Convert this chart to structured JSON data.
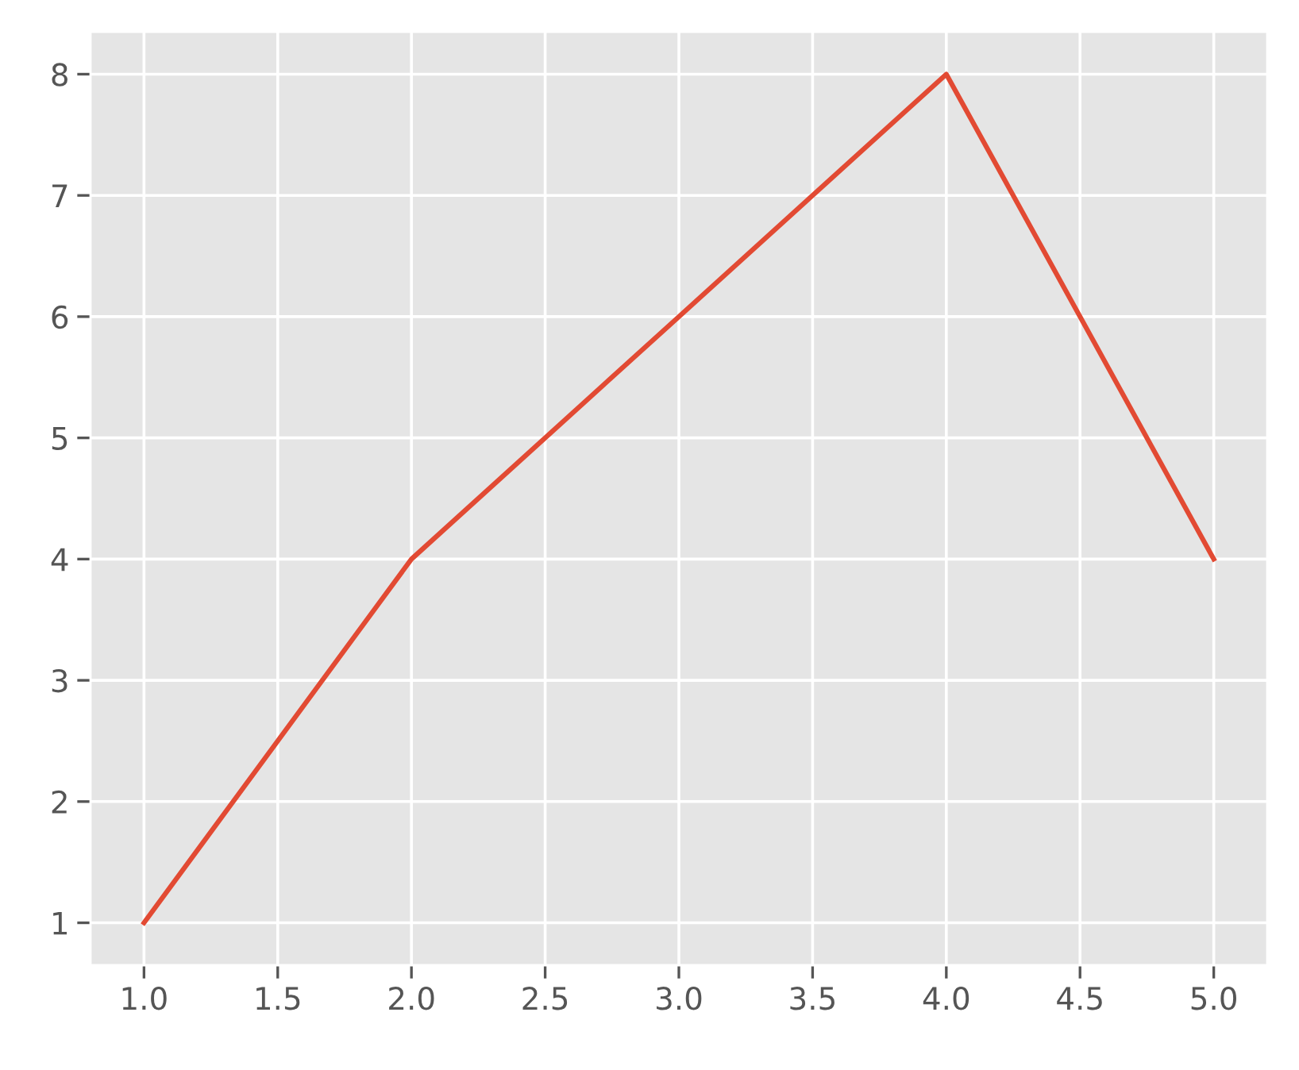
{
  "chart_data": {
    "type": "line",
    "x": [
      1,
      2,
      3,
      4,
      5
    ],
    "series": [
      {
        "color": "#e24a33",
        "values": [
          1,
          4,
          6,
          8,
          4
        ]
      }
    ],
    "xlim": [
      0.8,
      5.2
    ],
    "ylim": [
      0.65,
      8.35
    ],
    "xticks": [
      {
        "value": 1,
        "label": "1.0"
      },
      {
        "value": 1.5,
        "label": "1.5"
      },
      {
        "value": 2,
        "label": "2.0"
      },
      {
        "value": 2.5,
        "label": "2.5"
      },
      {
        "value": 3,
        "label": "3.0"
      },
      {
        "value": 3.5,
        "label": "3.5"
      },
      {
        "value": 4,
        "label": "4.0"
      },
      {
        "value": 4.5,
        "label": "4.5"
      },
      {
        "value": 5,
        "label": "5.0"
      }
    ],
    "yticks": [
      1,
      2,
      3,
      4,
      5,
      6,
      7,
      8
    ],
    "grid": true,
    "marker": "none",
    "line_style": "solid"
  }
}
